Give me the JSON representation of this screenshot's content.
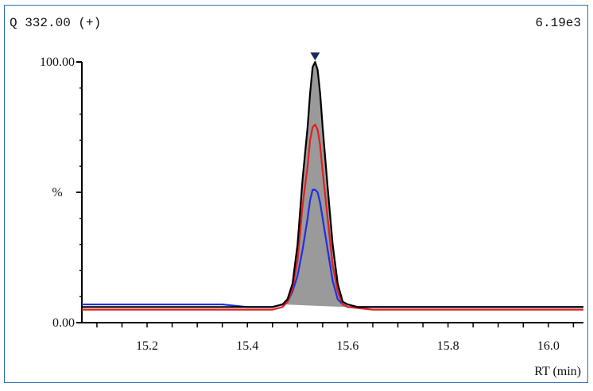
{
  "header": {
    "trace_label": "Q 332.00 (+)",
    "intensity": "6.19e3"
  },
  "chart_data": {
    "type": "line",
    "title": "Q 332.00 (+)",
    "xlabel": "RT (min)",
    "ylabel": "%",
    "xlim": [
      15.07,
      16.07
    ],
    "ylim": [
      0,
      100
    ],
    "x_ticks": [
      "15.2",
      "15.4",
      "15.6",
      "15.8",
      "16.0"
    ],
    "y_ticks": [
      "0.00",
      "100.00"
    ],
    "grid": false,
    "peak_marker_rt": 15.535,
    "fill_under": "black series",
    "series": [
      {
        "color": "#000000",
        "x": [
          15.07,
          15.1,
          15.13,
          15.16,
          15.2,
          15.25,
          15.3,
          15.35,
          15.4,
          15.45,
          15.47,
          15.48,
          15.49,
          15.5,
          15.51,
          15.52,
          15.525,
          15.53,
          15.535,
          15.54,
          15.545,
          15.55,
          15.56,
          15.57,
          15.58,
          15.59,
          15.6,
          15.62,
          15.65,
          15.7,
          15.75,
          15.8,
          15.85,
          15.9,
          15.95,
          16.0,
          16.05,
          16.07
        ],
        "y": [
          6,
          6,
          6,
          6,
          6,
          6,
          6,
          6,
          6,
          6,
          7,
          9,
          15,
          30,
          55,
          75,
          88,
          98,
          100,
          97,
          88,
          75,
          52,
          30,
          15,
          8,
          7,
          6,
          6,
          6,
          6,
          6,
          6,
          6,
          6,
          6,
          6,
          6
        ]
      },
      {
        "color": "#e02020",
        "x": [
          15.07,
          15.1,
          15.15,
          15.2,
          15.25,
          15.3,
          15.35,
          15.4,
          15.45,
          15.47,
          15.48,
          15.49,
          15.5,
          15.51,
          15.52,
          15.525,
          15.53,
          15.535,
          15.54,
          15.545,
          15.55,
          15.56,
          15.57,
          15.58,
          15.59,
          15.6,
          15.65,
          15.7,
          15.75,
          15.8,
          15.85,
          15.9,
          15.95,
          16.0,
          16.05,
          16.07
        ],
        "y": [
          5,
          5,
          5,
          5,
          5,
          5,
          5,
          5,
          5,
          6,
          8,
          13,
          24,
          45,
          60,
          70,
          75,
          76,
          74,
          68,
          58,
          40,
          22,
          12,
          7,
          6,
          5,
          5,
          5,
          5,
          5,
          5,
          5,
          5,
          5,
          5
        ]
      },
      {
        "color": "#1f2fe0",
        "x": [
          15.07,
          15.1,
          15.15,
          15.2,
          15.25,
          15.3,
          15.35,
          15.4,
          15.45,
          15.47,
          15.48,
          15.49,
          15.5,
          15.51,
          15.52,
          15.525,
          15.53,
          15.535,
          15.54,
          15.545,
          15.55,
          15.56,
          15.57,
          15.58,
          15.59,
          15.6,
          15.65,
          15.7,
          15.75,
          15.8,
          15.85,
          15.9,
          15.95,
          16.0,
          16.05,
          16.07
        ],
        "y": [
          7,
          7,
          7,
          7,
          7,
          7,
          7,
          6,
          6,
          7,
          8,
          12,
          18,
          28,
          40,
          47,
          51,
          51,
          50,
          46,
          40,
          28,
          16,
          9,
          7,
          6,
          6,
          6,
          6,
          6,
          6,
          6,
          6,
          6,
          6,
          6
        ]
      }
    ]
  }
}
